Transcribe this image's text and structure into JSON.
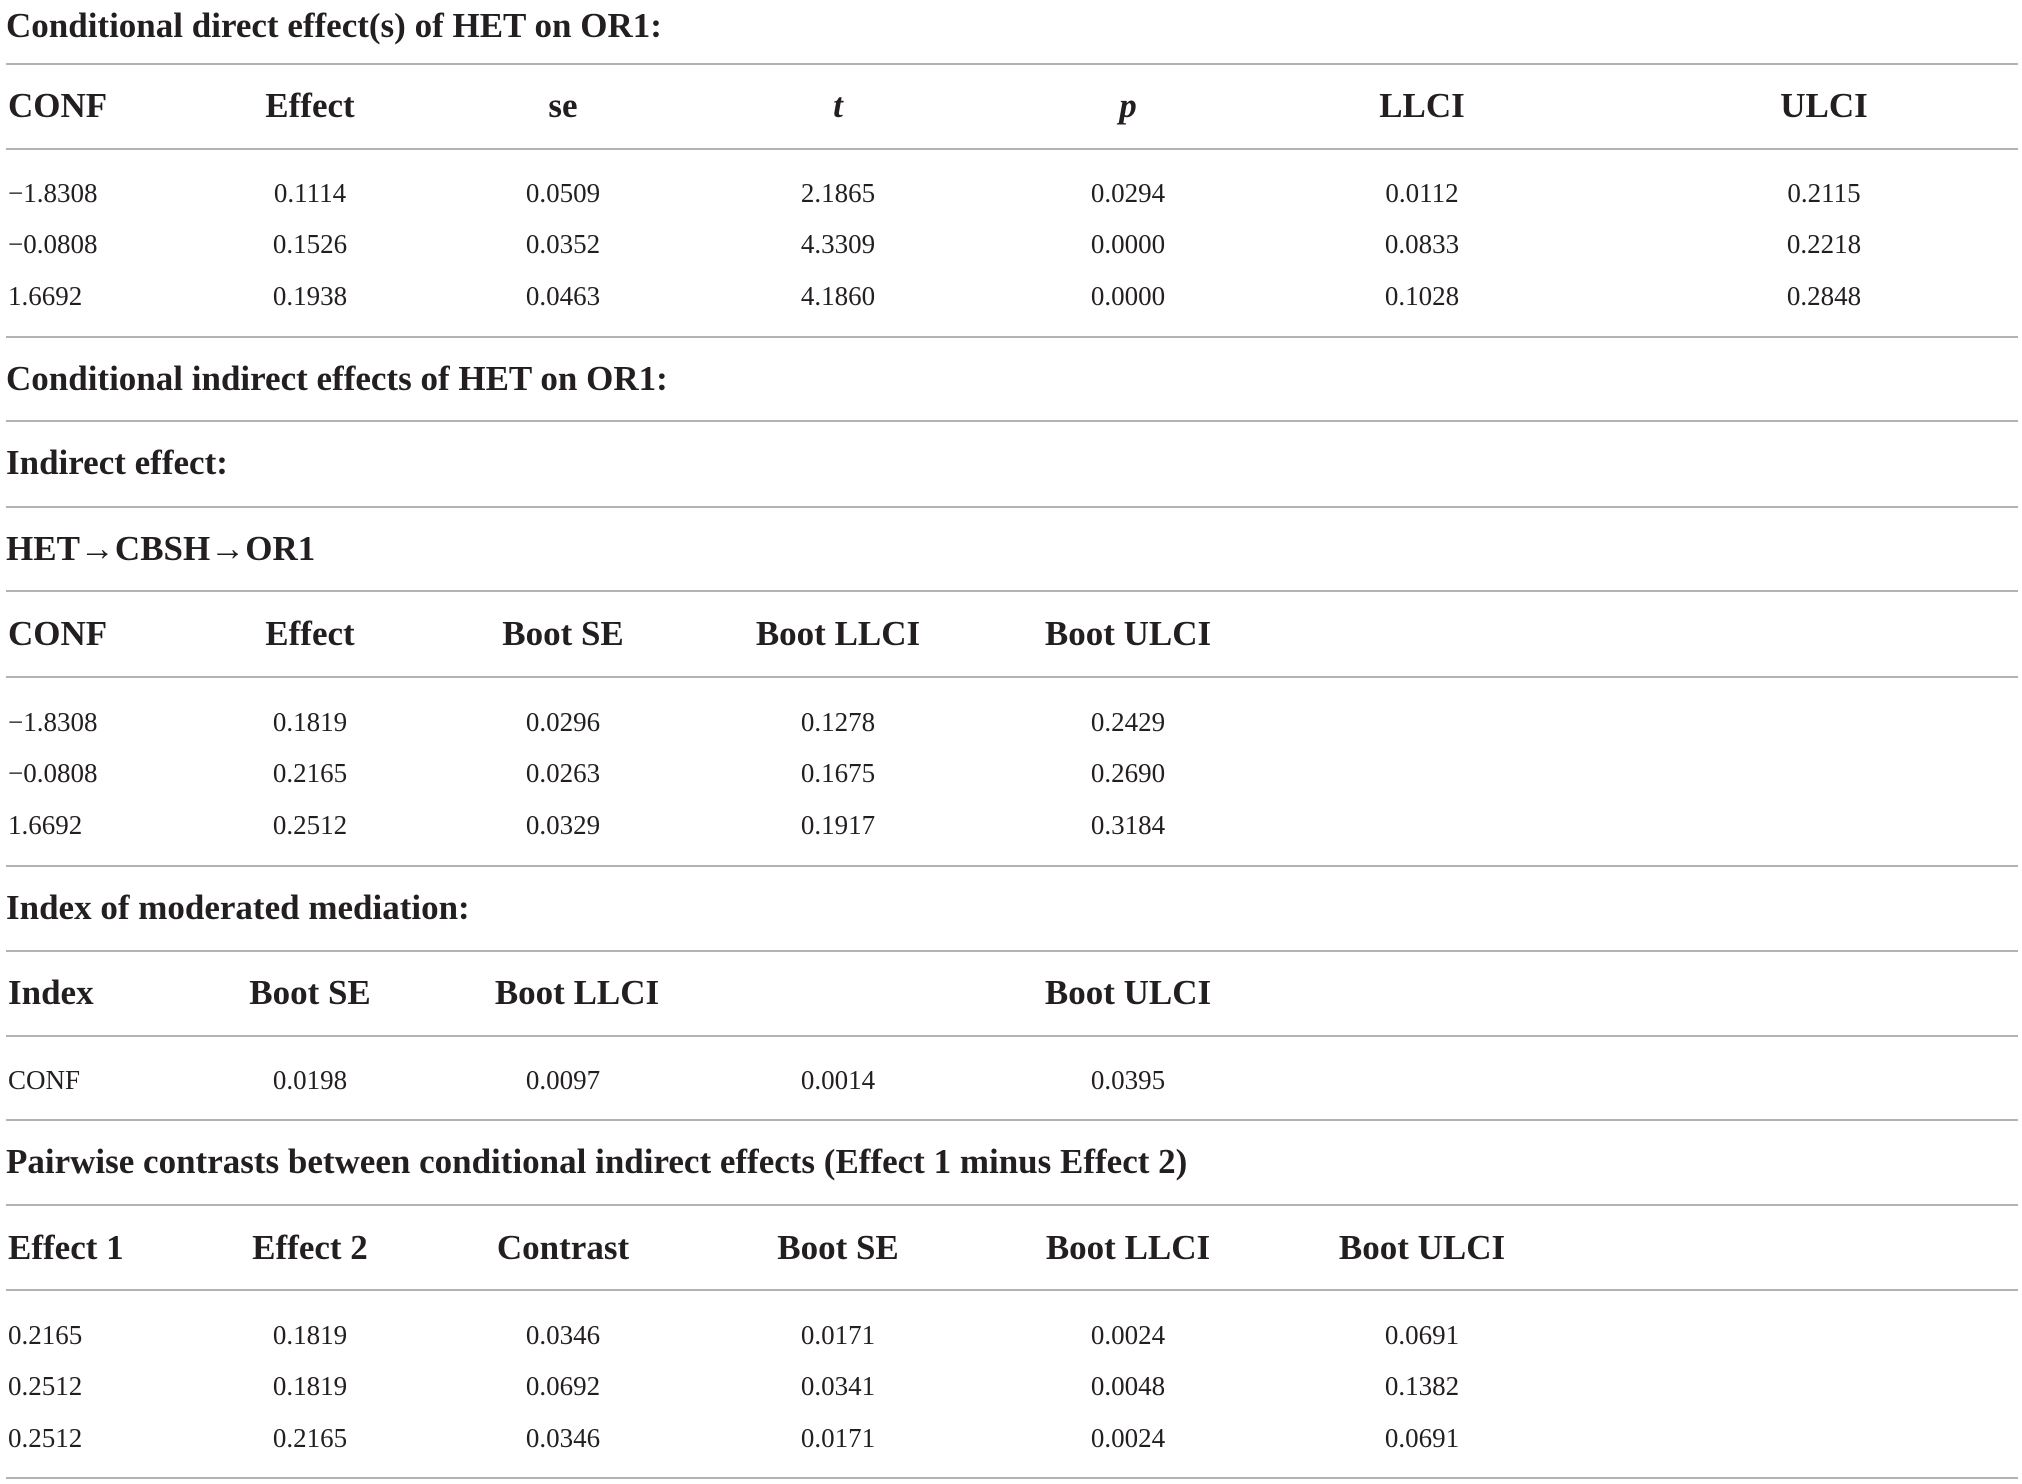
{
  "direct": {
    "title": "Conditional direct effect(s) of HET on OR1:",
    "headers": [
      "CONF",
      "Effect",
      "se",
      "t",
      "p",
      "LLCI",
      "ULCI"
    ],
    "rows": [
      [
        "−1.8308",
        "0.1114",
        "0.0509",
        "2.1865",
        "0.0294",
        "0.0112",
        "0.2115"
      ],
      [
        "−0.0808",
        "0.1526",
        "0.0352",
        "4.3309",
        "0.0000",
        "0.0833",
        "0.2218"
      ],
      [
        "1.6692",
        "0.1938",
        "0.0463",
        "4.1860",
        "0.0000",
        "0.1028",
        "0.2848"
      ]
    ]
  },
  "indirect": {
    "title": "Conditional indirect effects of HET on OR1:",
    "subtitle": "Indirect effect:",
    "path": "HET→CBSH→OR1",
    "headers": [
      "CONF",
      "Effect",
      "Boot SE",
      "Boot LLCI",
      "Boot ULCI"
    ],
    "rows": [
      [
        "−1.8308",
        "0.1819",
        "0.0296",
        "0.1278",
        "0.2429"
      ],
      [
        "−0.0808",
        "0.2165",
        "0.0263",
        "0.1675",
        "0.2690"
      ],
      [
        "1.6692",
        "0.2512",
        "0.0329",
        "0.1917",
        "0.3184"
      ]
    ]
  },
  "index": {
    "title": "Index of moderated mediation:",
    "headers": [
      "Index",
      "Boot SE",
      "Boot LLCI",
      "Boot ULCI"
    ],
    "row": [
      "CONF",
      "0.0198",
      "0.0097",
      "0.0014",
      "0.0395"
    ]
  },
  "pairwise": {
    "title": "Pairwise contrasts between conditional indirect effects (Effect 1 minus Effect 2)",
    "headers": [
      "Effect 1",
      "Effect 2",
      "Contrast",
      "Boot SE",
      "Boot LLCI",
      "Boot ULCI"
    ],
    "rows": [
      [
        "0.2165",
        "0.1819",
        "0.0346",
        "0.0171",
        "0.0024",
        "0.0691"
      ],
      [
        "0.2512",
        "0.1819",
        "0.0692",
        "0.0341",
        "0.0048",
        "0.1382"
      ],
      [
        "0.2512",
        "0.2165",
        "0.0346",
        "0.0171",
        "0.0024",
        "0.0691"
      ]
    ]
  }
}
